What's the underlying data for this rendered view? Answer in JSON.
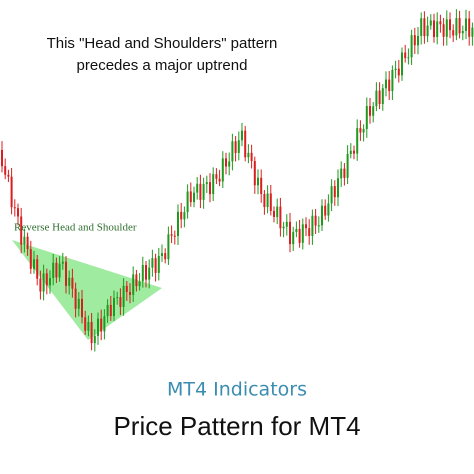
{
  "caption": {
    "line1": "This \"Head and Shoulders\" pattern",
    "line2": "precedes a major uptrend"
  },
  "pattern_label": "Reverse Head and Shoulder",
  "subtitle": "MT4 Indicators",
  "title": "Price Pattern for MT4"
}
